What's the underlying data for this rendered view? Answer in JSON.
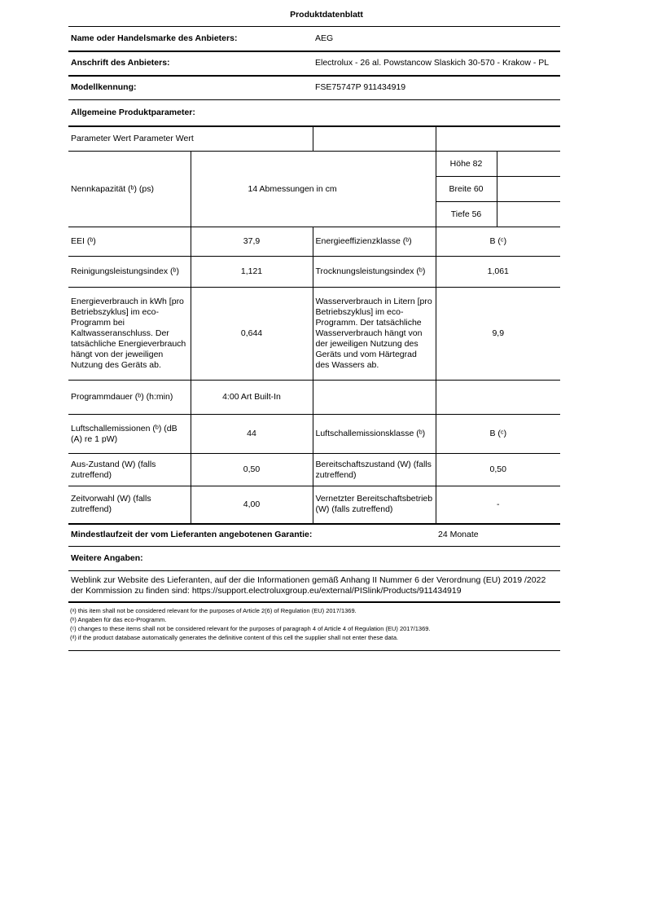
{
  "title": "Produktdatenblatt",
  "supplier": {
    "name_label": "Name oder Handelsmarke des Anbieters:",
    "name_value": "AEG",
    "address_label": "Anschrift des Anbieters:",
    "address_value": "Electrolux - 26 al. Powstancow Slaskich 30-570 - Krakow - PL",
    "model_label": "Modellkennung:",
    "model_value": "FSE75747P 911434919"
  },
  "general_label": "Allgemeine Produktparameter:",
  "header_row": "Parameter Wert Parameter Wert",
  "rows": {
    "capacity_label": "Nennkapazität (ᵇ) (ps)",
    "capacity_value": "14 Abmessungen in cm",
    "height": "Höhe 82",
    "width": "Breite 60",
    "depth": "Tiefe 56",
    "eei_label": "EEI (ᵇ)",
    "eei_value": "37,9",
    "eclass_label": "Energieeffizienzklasse (ᵇ)",
    "eclass_value": "B (ᶜ)",
    "clean_label": "Reinigungsleistungsindex (ᵇ)",
    "clean_value": "1,121",
    "dry_label": "Trocknungsleistungsindex (ᵇ)",
    "dry_value": "1,061",
    "energy_label": "Energieverbrauch in kWh [pro Betriebszyklus] im eco-Programm bei Kaltwasseranschluss. Der tatsächliche Energieverbrauch hängt von der jeweiligen Nutzung des Geräts ab.",
    "energy_value": "0,644",
    "water_label": "Wasserverbrauch in Litern [pro Betriebszyklus] im eco-Programm. Der tatsächliche Wasserverbrauch hängt von der jeweiligen Nutzung des Geräts und vom Härtegrad des Wassers ab.",
    "water_value": "9,9",
    "duration_label": "Programmdauer (ᵇ) (h:min)",
    "duration_value": "4:00 Art Built-In",
    "noise_label": "Luftschallemissionen (ᵇ) (dB (A) re 1 pW)",
    "noise_value": "44",
    "noiseclass_label": "Luftschallemissionsklasse (ᵇ)",
    "noiseclass_value": "B (ᶜ)",
    "off_label": "Aus-Zustand (W) (falls zutreffend)",
    "off_value": "0,50",
    "standby_label": "Bereitschaftszustand (W) (falls zutreffend)",
    "standby_value": "0,50",
    "delay_label": "Zeitvorwahl (W) (falls zutreffend)",
    "delay_value": "4,00",
    "network_label": "Vernetzter Bereitschaftsbetrieb (W) (falls zutreffend)",
    "network_value": "-"
  },
  "warranty_label": "Mindestlaufzeit der vom Lieferanten angebotenen Garantie:",
  "warranty_value": "24 Monate",
  "more_label": "Weitere Angaben:",
  "weblink": "Weblink zur Website des Lieferanten, auf der die Informationen gemäß Anhang II Nummer 6 der Verordnung (EU) 2019 /2022 der Kommission zu finden sind: https://support.electroluxgroup.eu/external/PISlink/Products/911434919",
  "footnotes": [
    "(ᵃ) this item shall not be considered relevant for the purposes of Article 2(6) of Regulation (EU) 2017/1369.",
    "(ᵇ) Angaben für das eco-Programm.",
    "(ᶜ) changes to these items shall not be considered relevant for the purposes of paragraph 4 of Article 4 of Regulation (EU) 2017/1369.",
    "(ᵈ) if the product database automatically generates the definitive content of this cell the supplier shall not enter these data."
  ]
}
